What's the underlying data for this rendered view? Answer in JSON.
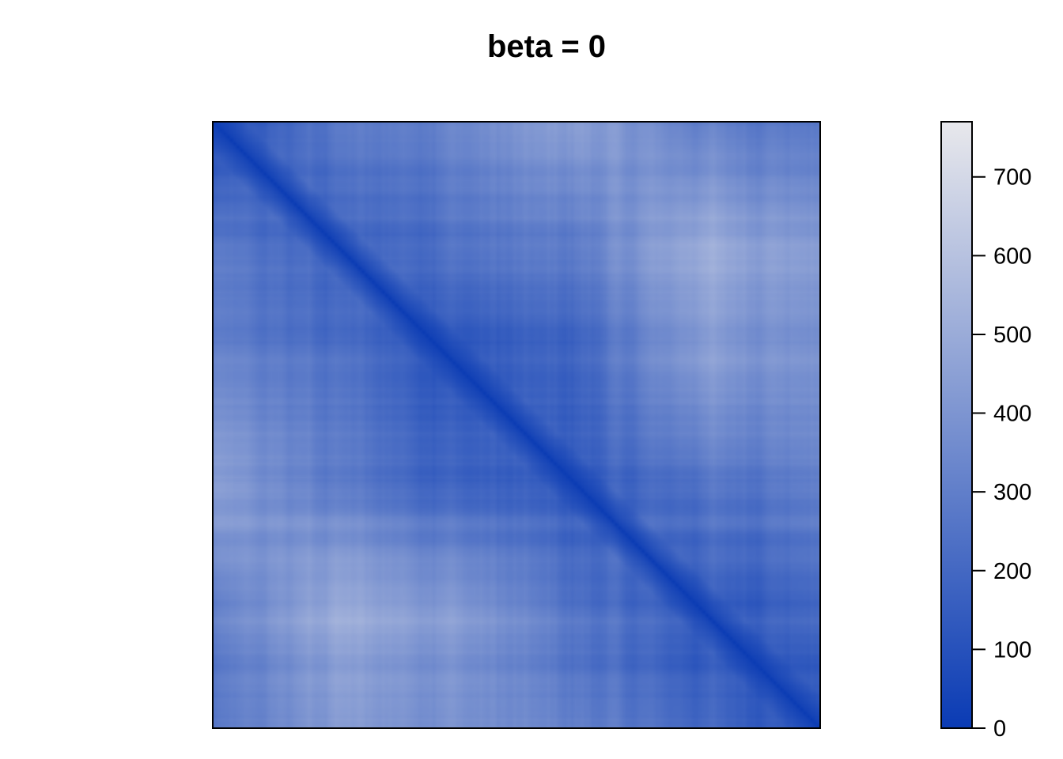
{
  "chart_data": {
    "type": "heatmap",
    "title": "beta = 0",
    "xlabel": "",
    "ylabel": "",
    "matrix_size": 180,
    "colorbar": {
      "min": 0,
      "max": 770,
      "ticks": [
        0,
        100,
        200,
        300,
        400,
        500,
        600,
        700
      ],
      "tick_labels": [
        "0",
        "100",
        "200",
        "300",
        "400",
        "500",
        "600",
        "700"
      ],
      "color_low": "#0a3bb4",
      "color_high": "#e8e8ec"
    },
    "diagonal_value": 0,
    "description_pattern": "symmetric distance-like matrix, zero on the diagonal",
    "region_means": {
      "grid_size": 6,
      "values": [
        [
          60,
          260,
          320,
          430,
          300,
          250
        ],
        [
          260,
          180,
          250,
          290,
          500,
          420
        ],
        [
          320,
          250,
          120,
          180,
          430,
          380
        ],
        [
          430,
          290,
          180,
          130,
          250,
          300
        ],
        [
          300,
          500,
          430,
          250,
          150,
          200
        ],
        [
          250,
          420,
          380,
          300,
          200,
          110
        ]
      ]
    }
  }
}
